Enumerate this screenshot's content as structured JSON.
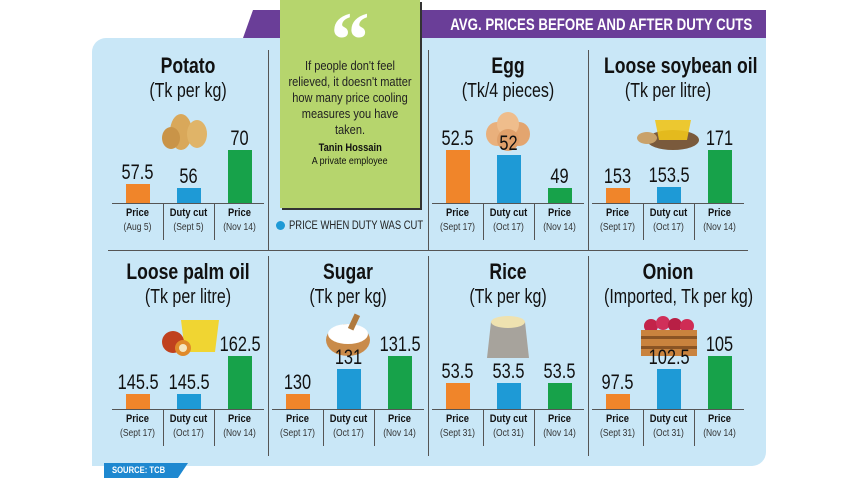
{
  "header": {
    "title": "AVG. PRICES BEFORE AND AFTER DUTY CUTS"
  },
  "quote": {
    "mark": "“",
    "text": "If people don't feel relieved, it doesn't matter how many price cooling measures you have taken.",
    "author": "Tanin Hossain",
    "role": "A private employee"
  },
  "legend": {
    "label": "PRICE WHEN DUTY WAS CUT",
    "color": "#1e9ad6"
  },
  "source": "SOURCE: TCB",
  "colors": {
    "price_before": "#f0852a",
    "duty_cut": "#1e9ad6",
    "price_now": "#17a24a",
    "panel_bg": "#c9e7f7",
    "banner": "#6a3e98",
    "quote_bg": "#b6d56d"
  },
  "chart_data": [
    {
      "type": "bar",
      "title": "Potato",
      "unit": "(Tk per kg)",
      "icon": "potato-icon",
      "categories": [
        "Price",
        "Duty cut",
        "Price"
      ],
      "dates": [
        "(Aug 5)",
        "(Sept 5)",
        "(Nov 14)"
      ],
      "values": [
        57.5,
        56,
        70
      ],
      "value_labels": [
        "57.5",
        "56",
        "70"
      ]
    },
    {
      "type": "bar",
      "title": "Egg",
      "unit": "(Tk/4 pieces)",
      "icon": "egg-icon",
      "categories": [
        "Price",
        "Duty cut",
        "Price"
      ],
      "dates": [
        "(Sept 17)",
        "(Oct 17)",
        "(Nov 14)"
      ],
      "values": [
        52.5,
        52,
        49
      ],
      "value_labels": [
        "52.5",
        "52",
        "49"
      ]
    },
    {
      "type": "bar",
      "title": "Loose soybean oil",
      "unit": "(Tk per litre)",
      "icon": "soybean-oil-icon",
      "categories": [
        "Price",
        "Duty cut",
        "Price"
      ],
      "dates": [
        "(Sept 17)",
        "(Oct 17)",
        "(Nov 14)"
      ],
      "values": [
        153,
        153.5,
        171
      ],
      "value_labels": [
        "153",
        "153.5",
        "171"
      ]
    },
    {
      "type": "bar",
      "title": "Loose palm oil",
      "unit": "(Tk per litre)",
      "icon": "palm-oil-icon",
      "categories": [
        "Price",
        "Duty cut",
        "Price"
      ],
      "dates": [
        "(Sept 17)",
        "(Oct 17)",
        "(Nov 14)"
      ],
      "values": [
        145.5,
        145.5,
        162.5
      ],
      "value_labels": [
        "145.5",
        "145.5",
        "162.5"
      ]
    },
    {
      "type": "bar",
      "title": "Sugar",
      "unit": "(Tk per kg)",
      "icon": "sugar-icon",
      "categories": [
        "Price",
        "Duty cut",
        "Price"
      ],
      "dates": [
        "(Sept 17)",
        "(Oct 17)",
        "(Nov 14)"
      ],
      "values": [
        130,
        131,
        131.5
      ],
      "value_labels": [
        "130",
        "131",
        "131.5"
      ]
    },
    {
      "type": "bar",
      "title": "Rice",
      "unit": "(Tk per kg)",
      "icon": "rice-sack-icon",
      "categories": [
        "Price",
        "Duty cut",
        "Price"
      ],
      "dates": [
        "(Sept 31)",
        "(Oct 31)",
        "(Nov 14)"
      ],
      "values": [
        53.5,
        53.5,
        53.5
      ],
      "value_labels": [
        "53.5",
        "53.5",
        "53.5"
      ]
    },
    {
      "type": "bar",
      "title": "Onion",
      "unit": "(Imported, Tk per kg)",
      "icon": "onion-crate-icon",
      "categories": [
        "Price",
        "Duty cut",
        "Price"
      ],
      "dates": [
        "(Sept 31)",
        "(Oct 31)",
        "(Nov 14)"
      ],
      "values": [
        97.5,
        102.5,
        105
      ],
      "value_labels": [
        "97.5",
        "102.5",
        "105"
      ]
    }
  ]
}
